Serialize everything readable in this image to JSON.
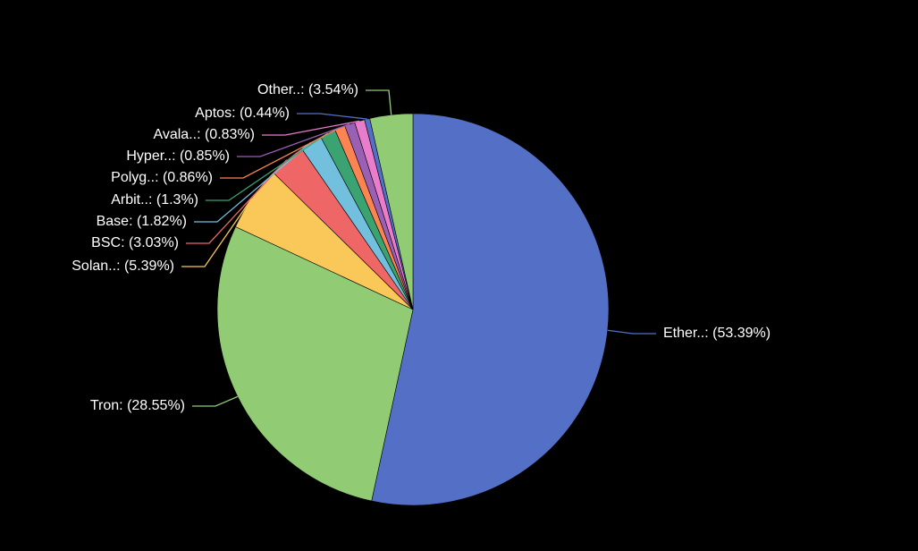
{
  "chart_data": {
    "type": "pie",
    "categories": [
      "Ether..:",
      "Tron:",
      "Solan..:",
      "BSC:",
      "Base:",
      "Arbit..:",
      "Polyg..:",
      "Hyper..:",
      "Avala..:",
      "Aptos:",
      "Other..:"
    ],
    "values": [
      53.39,
      28.55,
      5.39,
      3.03,
      1.82,
      1.3,
      0.86,
      0.85,
      0.83,
      0.44,
      3.54
    ],
    "value_labels": [
      "(53.39%)",
      "(28.55%)",
      "(5.39%)",
      "(3.03%)",
      "(1.82%)",
      "(1.3%)",
      "(0.86%)",
      "(0.85%)",
      "(0.83%)",
      "(0.44%)",
      "(3.54%)"
    ],
    "colors": [
      "#5470c6",
      "#91cc75",
      "#fac858",
      "#ee6666",
      "#73c0de",
      "#3ba272",
      "#fc8452",
      "#9a60b4",
      "#ea7ccc",
      "#5470c6",
      "#91cc75"
    ]
  }
}
